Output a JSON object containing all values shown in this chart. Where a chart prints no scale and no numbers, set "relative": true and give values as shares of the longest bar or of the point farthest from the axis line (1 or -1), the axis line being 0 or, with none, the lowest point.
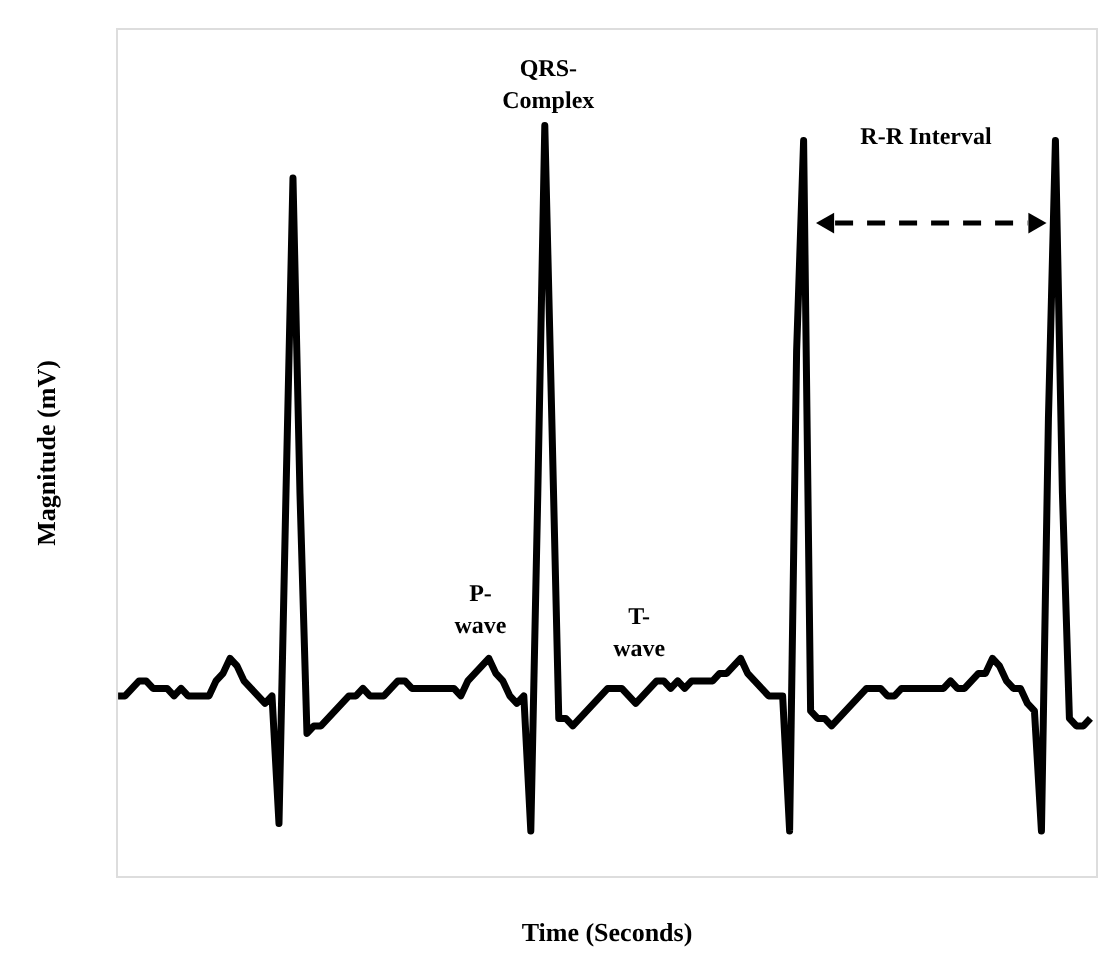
{
  "chart_data": {
    "type": "line",
    "relative": true,
    "xlabel": "Time (Seconds)",
    "ylabel": "Magnitude (mV)",
    "categories": [
      null,
      null,
      null,
      null,
      null,
      null,
      null,
      null,
      null,
      null,
      null,
      null,
      null,
      null,
      null,
      null,
      null,
      null,
      null,
      null,
      null,
      null,
      null,
      null,
      null,
      null,
      null,
      null,
      null,
      null,
      null,
      null,
      null,
      null,
      null,
      null,
      null,
      null,
      null,
      null,
      null,
      null,
      null,
      null,
      null,
      null,
      null,
      null,
      null,
      null,
      null,
      null,
      null,
      null,
      null,
      null,
      null,
      null,
      null,
      null,
      null,
      null,
      null,
      null,
      null,
      null,
      null,
      null,
      null,
      null,
      null,
      null,
      null,
      null,
      null,
      null,
      null,
      null,
      null,
      null,
      null,
      null,
      null,
      null,
      null,
      null,
      null,
      null,
      null,
      null,
      null,
      null,
      null,
      null,
      null,
      null,
      null,
      null,
      null,
      null,
      null,
      null,
      null,
      null,
      null,
      null,
      null,
      null,
      null,
      null,
      null,
      null,
      null,
      null,
      null,
      null,
      null,
      null,
      null,
      null,
      null,
      null,
      null,
      null,
      null,
      null,
      null,
      null,
      null,
      null,
      null,
      null,
      null,
      null,
      null,
      null,
      null,
      null,
      null,
      null
    ],
    "series": [
      {
        "color": "#000000",
        "values": [
          0.24,
          0.24,
          0.25,
          0.26,
          0.26,
          0.25,
          0.25,
          0.25,
          0.24,
          0.25,
          0.24,
          0.24,
          0.24,
          0.24,
          0.26,
          0.27,
          0.29,
          0.28,
          0.26,
          0.25,
          0.24,
          0.23,
          0.24,
          0.07,
          0.51,
          0.93,
          0.51,
          0.19,
          0.2,
          0.2,
          0.21,
          0.22,
          0.23,
          0.24,
          0.24,
          0.25,
          0.24,
          0.24,
          0.24,
          0.25,
          0.26,
          0.26,
          0.25,
          0.25,
          0.25,
          0.25,
          0.25,
          0.25,
          0.25,
          0.24,
          0.26,
          0.27,
          0.28,
          0.29,
          0.27,
          0.26,
          0.24,
          0.23,
          0.24,
          0.06,
          0.51,
          1.0,
          0.61,
          0.21,
          0.21,
          0.2,
          0.21,
          0.22,
          0.23,
          0.24,
          0.25,
          0.25,
          0.25,
          0.24,
          0.23,
          0.24,
          0.25,
          0.26,
          0.26,
          0.25,
          0.26,
          0.25,
          0.26,
          0.26,
          0.26,
          0.26,
          0.27,
          0.27,
          0.28,
          0.29,
          0.27,
          0.26,
          0.25,
          0.24,
          0.24,
          0.24,
          0.06,
          0.7,
          0.98,
          0.22,
          0.21,
          0.21,
          0.2,
          0.21,
          0.22,
          0.23,
          0.24,
          0.25,
          0.25,
          0.25,
          0.24,
          0.24,
          0.25,
          0.25,
          0.25,
          0.25,
          0.25,
          0.25,
          0.25,
          0.26,
          0.25,
          0.25,
          0.26,
          0.27,
          0.27,
          0.29,
          0.28,
          0.26,
          0.25,
          0.25,
          0.23,
          0.22,
          0.06,
          0.61,
          0.98,
          0.51,
          0.21,
          0.2,
          0.2,
          0.21
        ]
      }
    ],
    "annotations": [
      "QRS-\nComplex",
      "P-\nwave",
      "T-\nwave",
      "R-R Interval"
    ],
    "line_style": "solid",
    "marker": "none",
    "grid": false
  }
}
